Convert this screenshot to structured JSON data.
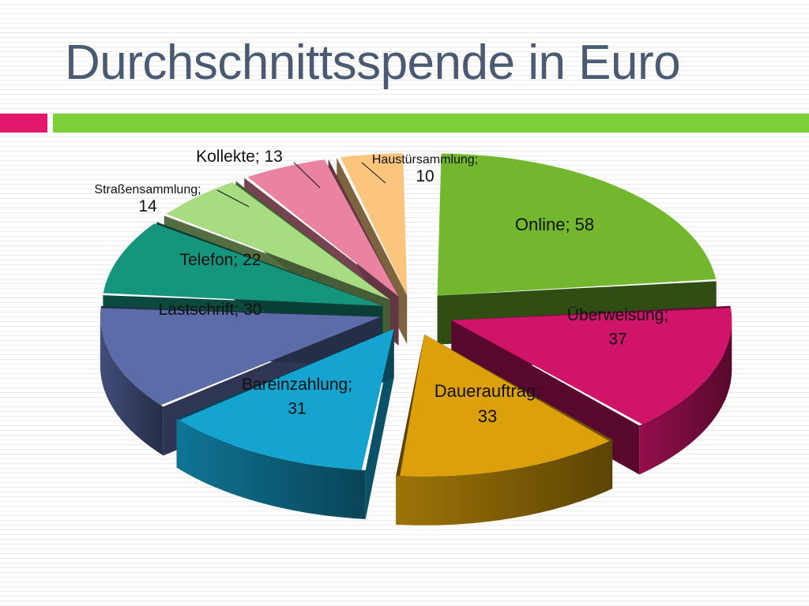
{
  "title": "Durchschnittsspende in Euro",
  "colors": {
    "title": "#4a5a72",
    "accent_bar": "#7ed03a",
    "accent_marker": "#e3176b"
  },
  "chart_data": {
    "type": "pie",
    "style": "3d-exploded",
    "title": "",
    "slices": [
      {
        "label": "Online",
        "value": 58,
        "text": "Online; 58",
        "color": "#72b72e"
      },
      {
        "label": "Überweisung",
        "value": 37,
        "text": "Überweisung; 37",
        "color": "#cf1469"
      },
      {
        "label": "Dauerauftrag",
        "value": 33,
        "text": "Dauerauftrag; 33",
        "color": "#dca10a"
      },
      {
        "label": "Bareinzahlung",
        "value": 31,
        "text": "Bareinzahlung; 31",
        "color": "#15a3cf"
      },
      {
        "label": "Lastschrift",
        "value": 30,
        "text": "Lastschrift; 30",
        "color": "#5b6ca8"
      },
      {
        "label": "Telefon",
        "value": 22,
        "text": "Telefon; 22",
        "color": "#16957d"
      },
      {
        "label": "Straßensammlung",
        "value": 14,
        "text": "Straßensammlung; 14",
        "color": "#a7dc83"
      },
      {
        "label": "Kollekte",
        "value": 13,
        "text": "Kollekte; 13",
        "color": "#e9839f"
      },
      {
        "label": "Haustürsammlung",
        "value": 10,
        "text": "Haustürsammlung; 10",
        "color": "#fbc57d"
      }
    ]
  }
}
